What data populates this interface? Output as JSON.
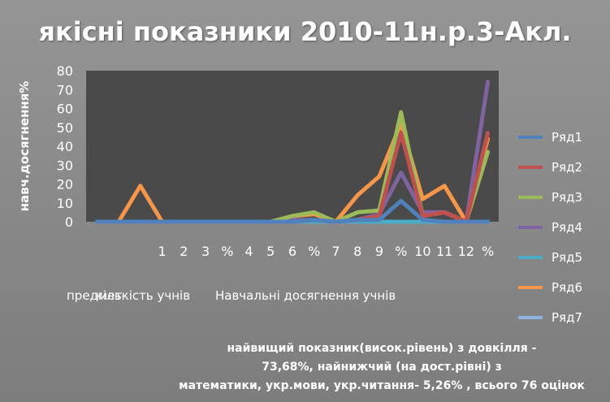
{
  "chart_data": {
    "type": "line",
    "title": "якісні показники 2010-11н.р.3-Акл.",
    "ylabel": "навч.досягнення%",
    "ylim": [
      0,
      80
    ],
    "yticks": [
      0,
      10,
      20,
      30,
      40,
      50,
      60,
      70,
      80
    ],
    "x": [
      "",
      "",
      "",
      "1",
      "2",
      "3",
      "%",
      "4",
      "5",
      "6",
      "%",
      "7",
      "8",
      "9",
      "%",
      "10",
      "11",
      "12",
      "%"
    ],
    "category_labels": [
      "предмет",
      "кількість учнів",
      "Навчальні досягнення учнів"
    ],
    "legend_position": "right",
    "series": [
      {
        "name": "Ряд1",
        "color": "#4f81bd",
        "values": [
          0,
          0,
          0,
          0,
          0,
          0,
          0,
          0,
          0,
          0,
          1,
          0,
          1,
          1,
          11,
          1,
          0,
          0,
          0
        ]
      },
      {
        "name": "Ряд2",
        "color": "#c0504d",
        "values": [
          0,
          0,
          0,
          0,
          0,
          0,
          0,
          0,
          0,
          0,
          1,
          0,
          1,
          3,
          47,
          3,
          5,
          0,
          47
        ]
      },
      {
        "name": "Ряд3",
        "color": "#9bbb59",
        "values": [
          0,
          0,
          0,
          0,
          0,
          0,
          0,
          0,
          0,
          3,
          5,
          0,
          5,
          6,
          58,
          3,
          5,
          0,
          37
        ]
      },
      {
        "name": "Ряд4",
        "color": "#8064a2",
        "values": [
          0,
          0,
          0,
          0,
          0,
          0,
          0,
          0,
          0,
          1,
          1,
          0,
          1,
          4,
          26,
          5,
          5,
          0,
          74
        ]
      },
      {
        "name": "Ряд5",
        "color": "#4bacc6",
        "values": [
          0,
          0,
          0,
          0,
          0,
          0,
          0,
          0,
          0,
          0,
          0,
          0,
          0,
          0,
          0,
          0,
          0,
          0,
          0
        ]
      },
      {
        "name": "Ряд6",
        "color": "#f79646",
        "values": [
          0,
          0,
          19,
          0,
          0,
          0,
          0,
          0,
          0,
          3,
          4,
          0,
          14,
          24,
          52,
          12,
          19,
          0,
          44
        ]
      },
      {
        "name": "Ряд7",
        "color": "#8eb4e3",
        "values": [
          0,
          0,
          0,
          0,
          0,
          0,
          0,
          0,
          0,
          0,
          0,
          0,
          0,
          0,
          0,
          0,
          0,
          0,
          0
        ]
      }
    ],
    "grid": false
  },
  "footnote": {
    "line1": "найвищий показник(висок.рівень) з довкілля -",
    "line2": "73,68%, найнижчий (на дост.рівні)  з",
    "line3": "математики, укр.мови, укр.читання- 5,26% , всього 76 оцінок"
  }
}
